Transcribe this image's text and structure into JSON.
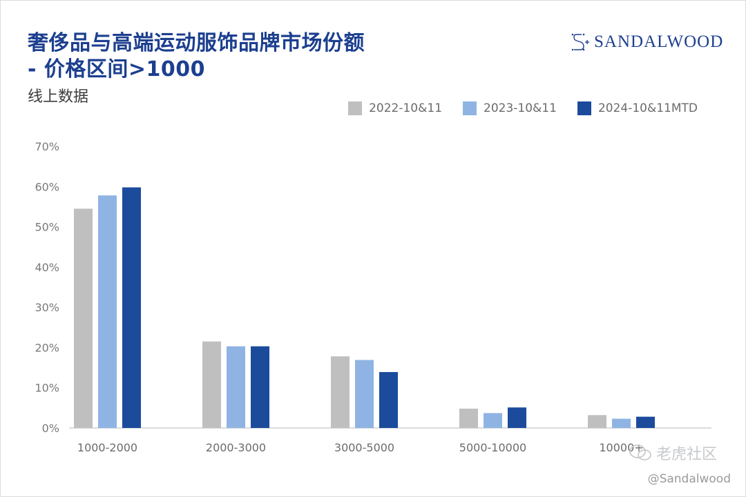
{
  "header": {
    "title_line1": "奢侈品与高端运动服饰品牌市场份额",
    "title_line2": "- 价格区间>1000",
    "subtitle": "线上数据"
  },
  "logo": {
    "text": "SANDALWOOD"
  },
  "watermark": {
    "text": "老虎社区"
  },
  "credit": {
    "text": "@Sandalwood"
  },
  "colors": {
    "series": [
      "#bfbfbf",
      "#8fb4e3",
      "#1c4b9c"
    ],
    "title": "#1c3f8f"
  },
  "chart_data": {
    "type": "bar",
    "title": "奢侈品与高端运动服饰品牌市场份额 - 价格区间>1000",
    "subtitle": "线上数据",
    "categories": [
      "1000-2000",
      "2000-3000",
      "3000-5000",
      "5000-10000",
      "10000+"
    ],
    "series": [
      {
        "name": "2022-10&11",
        "values": [
          54.5,
          21.5,
          17.8,
          4.8,
          3.2
        ]
      },
      {
        "name": "2023-10&11",
        "values": [
          57.8,
          20.3,
          16.9,
          3.7,
          2.3
        ]
      },
      {
        "name": "2024-10&11MTD",
        "values": [
          59.8,
          20.3,
          13.9,
          5.1,
          2.8
        ]
      }
    ],
    "ylim": [
      0,
      70
    ],
    "yticks": [
      0,
      10,
      20,
      30,
      40,
      50,
      60,
      70
    ],
    "ytick_labels": [
      "0%",
      "10%",
      "20%",
      "30%",
      "40%",
      "50%",
      "60%",
      "70%"
    ],
    "xlabel": "",
    "ylabel": "",
    "grid": false,
    "legend": "top-right"
  }
}
